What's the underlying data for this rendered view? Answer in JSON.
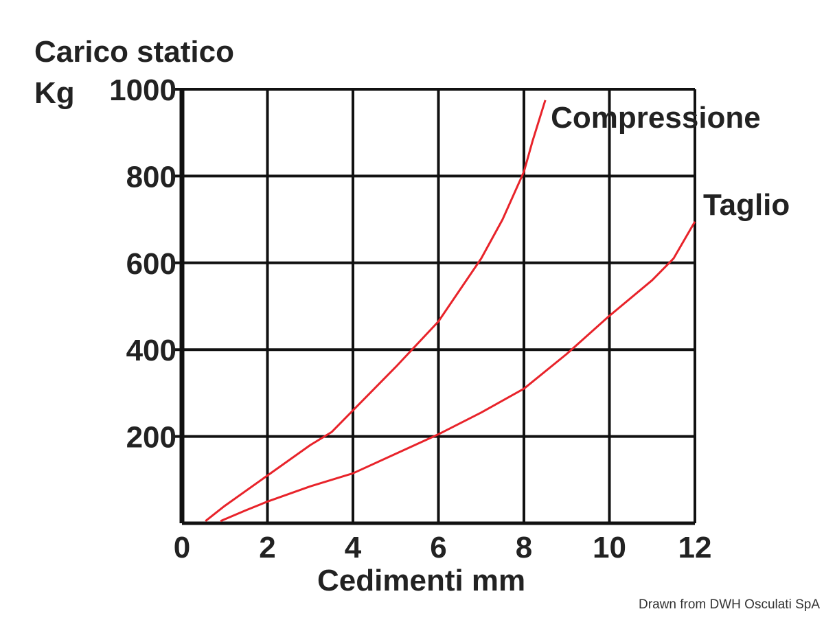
{
  "chart_data": {
    "type": "line",
    "ylabel": "Carico statico",
    "yunit": "Kg",
    "xlabel": "Cedimenti mm",
    "xlim": [
      0,
      12
    ],
    "ylim": [
      0,
      1000
    ],
    "xticks": [
      "0",
      "2",
      "4",
      "6",
      "8",
      "10",
      "12"
    ],
    "yticks": [
      "200",
      "400",
      "600",
      "800",
      "1000"
    ],
    "grid": true,
    "line_color": "#e8232a",
    "series": [
      {
        "name": "Compressione",
        "x": [
          0.55,
          1,
          2,
          3,
          3.5,
          4,
          5,
          6,
          7,
          7.5,
          8,
          8.2,
          8.5
        ],
        "y": [
          5,
          40,
          110,
          180,
          210,
          260,
          360,
          465,
          610,
          700,
          810,
          880,
          975
        ]
      },
      {
        "name": "Taglio",
        "x": [
          0.9,
          1.5,
          2,
          3,
          4,
          5,
          6,
          7,
          8,
          9,
          10,
          11,
          11.5,
          12
        ],
        "y": [
          5,
          30,
          50,
          85,
          115,
          160,
          205,
          255,
          310,
          390,
          478,
          560,
          610,
          695
        ]
      }
    ]
  },
  "credit": "Drawn from DWH Osculati SpA"
}
